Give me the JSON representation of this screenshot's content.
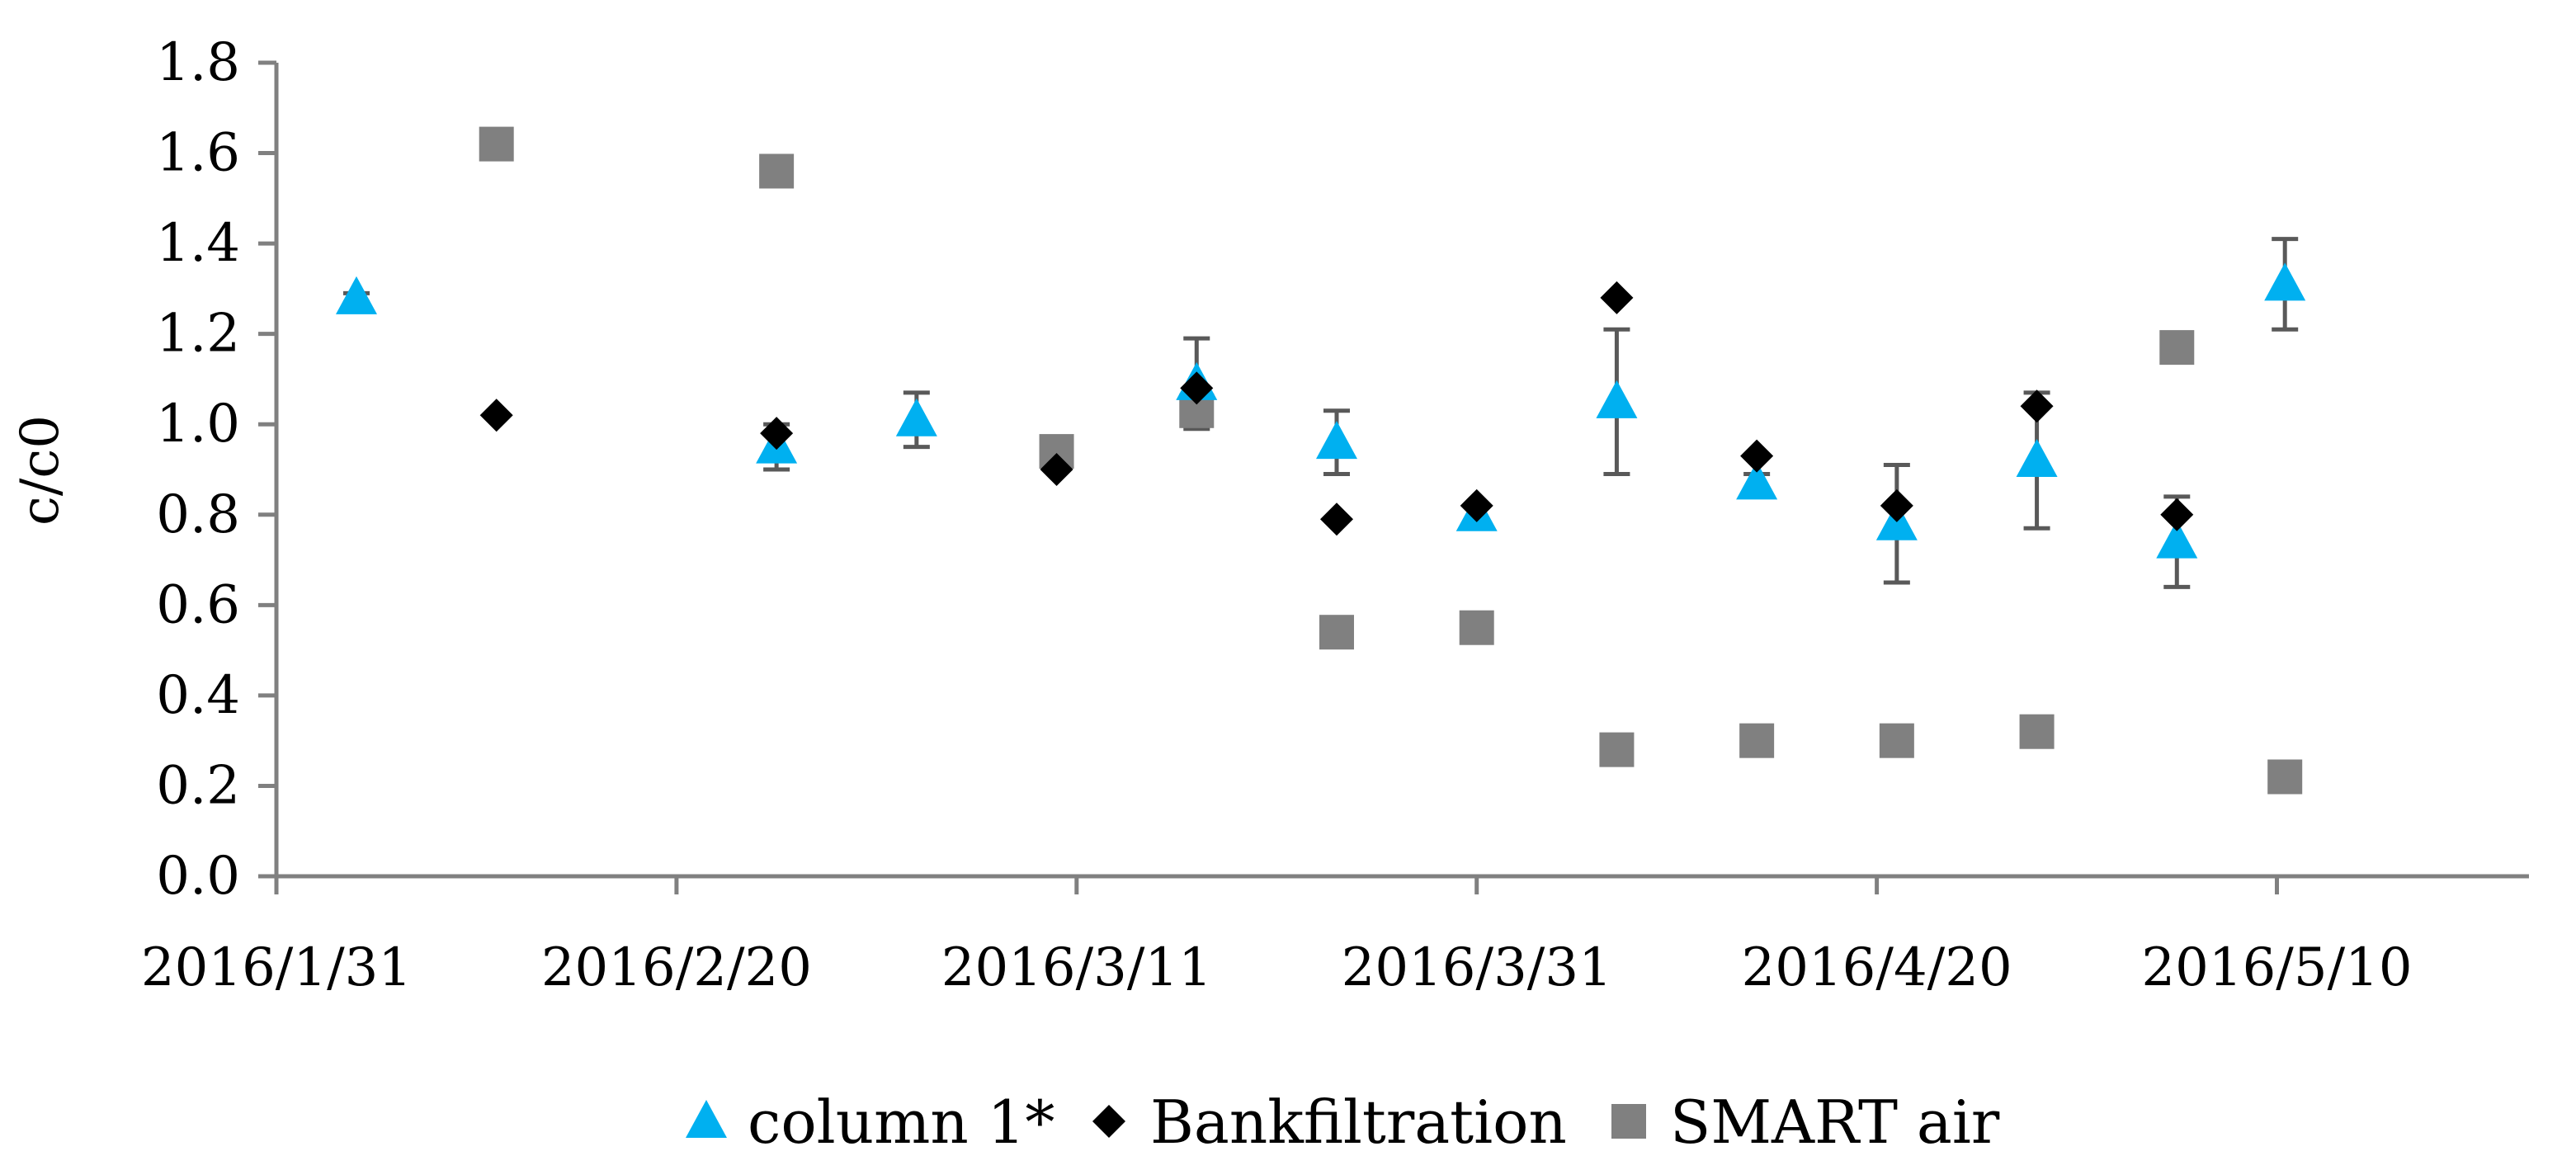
{
  "chart_data": {
    "type": "scatter",
    "title": "",
    "xlabel": "",
    "ylabel": "c/c0",
    "ylim": [
      0,
      1.8
    ],
    "y_ticks": [
      "0.0",
      "0.2",
      "0.4",
      "0.6",
      "0.8",
      "1.0",
      "1.2",
      "1.4",
      "1.6",
      "1.8"
    ],
    "xlim_days": [
      0,
      112.6
    ],
    "x_ticks": [
      {
        "label": "2016/1/31",
        "day": 0
      },
      {
        "label": "2016/2/20",
        "day": 20
      },
      {
        "label": "2016/3/11",
        "day": 40
      },
      {
        "label": "2016/3/31",
        "day": 60
      },
      {
        "label": "2016/4/20",
        "day": 80
      },
      {
        "label": "2016/5/10",
        "day": 100
      }
    ],
    "x_unit": "days since 2016/1/31",
    "grid": false,
    "legend_position": "bottom",
    "series": [
      {
        "name": "column 1*",
        "marker": "triangle",
        "color": "#00B0F0",
        "points": [
          {
            "day": 4,
            "y": 1.28,
            "err": 0.01
          },
          {
            "day": 25,
            "y": 0.95,
            "err": 0.05
          },
          {
            "day": 32,
            "y": 1.01,
            "err": 0.06
          },
          {
            "day": 46,
            "y": 1.09,
            "err": 0.1
          },
          {
            "day": 53,
            "y": 0.96,
            "err": 0.07
          },
          {
            "day": 60,
            "y": 0.8,
            "err": 0.02
          },
          {
            "day": 67,
            "y": 1.05,
            "err": 0.16
          },
          {
            "day": 74,
            "y": 0.87,
            "err": 0.02
          },
          {
            "day": 81,
            "y": 0.78,
            "err": 0.13
          },
          {
            "day": 88,
            "y": 0.92,
            "err": 0.15
          },
          {
            "day": 95,
            "y": 0.74,
            "err": 0.1
          },
          {
            "day": 100.4,
            "y": 1.31,
            "err": 0.1
          }
        ]
      },
      {
        "name": "Bankfiltration",
        "marker": "diamond",
        "color": "#000000",
        "points": [
          {
            "day": 11,
            "y": 1.02
          },
          {
            "day": 25,
            "y": 0.98
          },
          {
            "day": 39,
            "y": 0.9
          },
          {
            "day": 46,
            "y": 1.08
          },
          {
            "day": 53,
            "y": 0.79
          },
          {
            "day": 60,
            "y": 0.82
          },
          {
            "day": 67,
            "y": 1.28
          },
          {
            "day": 74,
            "y": 0.93
          },
          {
            "day": 81,
            "y": 0.82
          },
          {
            "day": 88,
            "y": 1.04
          },
          {
            "day": 95,
            "y": 0.8
          }
        ]
      },
      {
        "name": "SMART air",
        "marker": "square",
        "color": "#808080",
        "points": [
          {
            "day": 11,
            "y": 1.62
          },
          {
            "day": 25,
            "y": 1.56
          },
          {
            "day": 39,
            "y": 0.94
          },
          {
            "day": 46,
            "y": 1.03
          },
          {
            "day": 53,
            "y": 0.54
          },
          {
            "day": 60,
            "y": 0.55
          },
          {
            "day": 67,
            "y": 0.28
          },
          {
            "day": 74,
            "y": 0.3
          },
          {
            "day": 81,
            "y": 0.3
          },
          {
            "day": 88,
            "y": 0.32
          },
          {
            "day": 95,
            "y": 1.17
          },
          {
            "day": 100.4,
            "y": 0.22
          }
        ]
      }
    ],
    "error_bar_color": "#595959",
    "axis_color": "#808080"
  }
}
